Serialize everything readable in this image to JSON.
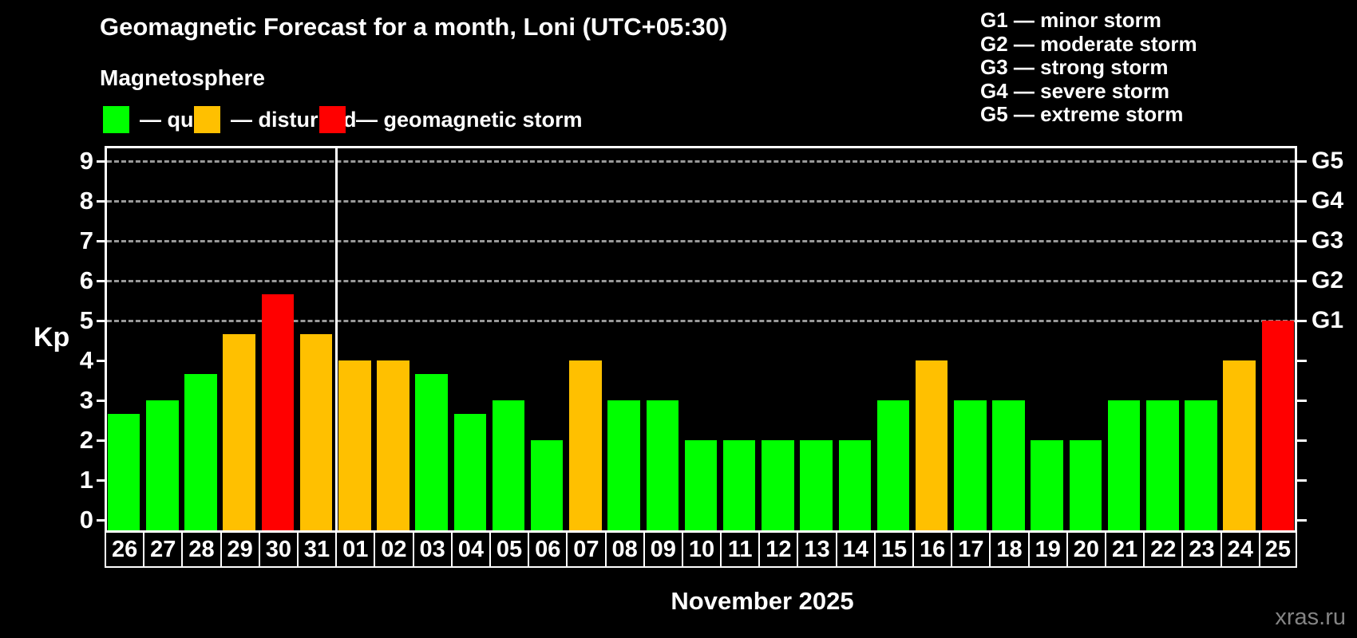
{
  "title": "Geomagnetic Forecast for a month, Loni (UTC+05:30)",
  "subtitle": "Magnetosphere",
  "legend": [
    {
      "status": "quiet",
      "label": "— quiet"
    },
    {
      "status": "disturbed",
      "label": "— disturbed"
    },
    {
      "status": "storm",
      "label": "— geomagnetic storm"
    }
  ],
  "g_legend": [
    "G1 — minor storm",
    "G2 — moderate storm",
    "G3 — strong storm",
    "G4 — severe storm",
    "G5 — extreme storm"
  ],
  "colors": {
    "quiet": "#00ff00",
    "disturbed": "#ffc000",
    "storm": "#ff0000",
    "gridline": "#999999",
    "axis": "#ffffff",
    "watermark": "#848484"
  },
  "axes": {
    "y_left_label": "Kp",
    "y_ticks": [
      "0",
      "1",
      "2",
      "3",
      "4",
      "5",
      "6",
      "7",
      "8",
      "9"
    ],
    "y_right": [
      {
        "label": "G1",
        "kp": 5
      },
      {
        "label": "G2",
        "kp": 6
      },
      {
        "label": "G3",
        "kp": 7
      },
      {
        "label": "G4",
        "kp": 8
      },
      {
        "label": "G5",
        "kp": 9
      }
    ],
    "x_label": "November 2025"
  },
  "watermark": "xras.ru",
  "chart_data": {
    "type": "bar",
    "title": "Geomagnetic Forecast for a month, Loni (UTC+05:30)",
    "ylabel": "Kp",
    "xlabel": "November 2025",
    "ylim": [
      0,
      9.4
    ],
    "gridline_levels": [
      5,
      6,
      7,
      8,
      9
    ],
    "month_boundary_after_index": 5,
    "categories": [
      "26",
      "27",
      "28",
      "29",
      "30",
      "31",
      "01",
      "02",
      "03",
      "04",
      "05",
      "06",
      "07",
      "08",
      "09",
      "10",
      "11",
      "12",
      "13",
      "14",
      "15",
      "16",
      "17",
      "18",
      "19",
      "20",
      "21",
      "22",
      "23",
      "24",
      "25"
    ],
    "values": [
      2.67,
      3,
      3.67,
      4.67,
      5.67,
      4.67,
      4,
      4,
      3.67,
      2.67,
      3,
      2,
      4,
      3,
      3,
      2,
      2,
      2,
      2,
      2,
      3,
      4,
      3,
      3,
      2,
      2,
      3,
      3,
      3,
      4,
      5
    ],
    "days": [
      {
        "day": "26",
        "kp": 2.67,
        "status": "quiet"
      },
      {
        "day": "27",
        "kp": 3,
        "status": "quiet"
      },
      {
        "day": "28",
        "kp": 3.67,
        "status": "quiet"
      },
      {
        "day": "29",
        "kp": 4.67,
        "status": "disturbed"
      },
      {
        "day": "30",
        "kp": 5.67,
        "status": "storm"
      },
      {
        "day": "31",
        "kp": 4.67,
        "status": "disturbed"
      },
      {
        "day": "01",
        "kp": 4,
        "status": "disturbed"
      },
      {
        "day": "02",
        "kp": 4,
        "status": "disturbed"
      },
      {
        "day": "03",
        "kp": 3.67,
        "status": "quiet"
      },
      {
        "day": "04",
        "kp": 2.67,
        "status": "quiet"
      },
      {
        "day": "05",
        "kp": 3,
        "status": "quiet"
      },
      {
        "day": "06",
        "kp": 2,
        "status": "quiet"
      },
      {
        "day": "07",
        "kp": 4,
        "status": "disturbed"
      },
      {
        "day": "08",
        "kp": 3,
        "status": "quiet"
      },
      {
        "day": "09",
        "kp": 3,
        "status": "quiet"
      },
      {
        "day": "10",
        "kp": 2,
        "status": "quiet"
      },
      {
        "day": "11",
        "kp": 2,
        "status": "quiet"
      },
      {
        "day": "12",
        "kp": 2,
        "status": "quiet"
      },
      {
        "day": "13",
        "kp": 2,
        "status": "quiet"
      },
      {
        "day": "14",
        "kp": 2,
        "status": "quiet"
      },
      {
        "day": "15",
        "kp": 3,
        "status": "quiet"
      },
      {
        "day": "16",
        "kp": 4,
        "status": "disturbed"
      },
      {
        "day": "17",
        "kp": 3,
        "status": "quiet"
      },
      {
        "day": "18",
        "kp": 3,
        "status": "quiet"
      },
      {
        "day": "19",
        "kp": 2,
        "status": "quiet"
      },
      {
        "day": "20",
        "kp": 2,
        "status": "quiet"
      },
      {
        "day": "21",
        "kp": 3,
        "status": "quiet"
      },
      {
        "day": "22",
        "kp": 3,
        "status": "quiet"
      },
      {
        "day": "23",
        "kp": 3,
        "status": "quiet"
      },
      {
        "day": "24",
        "kp": 4,
        "status": "disturbed"
      },
      {
        "day": "25",
        "kp": 5,
        "status": "storm"
      }
    ]
  }
}
